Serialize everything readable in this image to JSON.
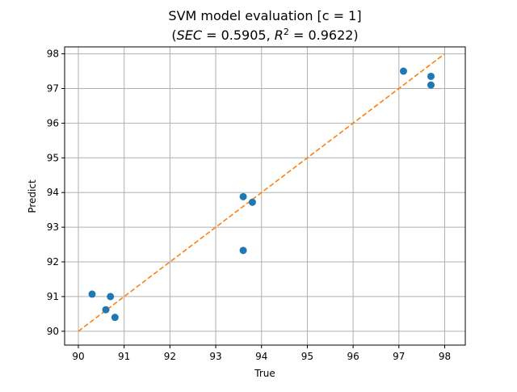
{
  "chart_data": {
    "type": "scatter",
    "title": "SVM model evaluation [c = 1]",
    "subtitle": {
      "open": "(",
      "sec_label": "SEC",
      "sec_eq": " = 0.5905, ",
      "r2_label": "R",
      "r2_exp": "2",
      "r2_eq": " = 0.9622",
      "close": ")"
    },
    "xlabel": "True",
    "ylabel": "Predict",
    "xlim": [
      89.7,
      98.45
    ],
    "ylim": [
      89.6,
      98.2
    ],
    "xticks": [
      90,
      91,
      92,
      93,
      94,
      95,
      96,
      97,
      98
    ],
    "yticks": [
      90,
      91,
      92,
      93,
      94,
      95,
      96,
      97,
      98
    ],
    "grid": true,
    "series": [
      {
        "color": "#1f77b4",
        "x": [
          90.3,
          90.7,
          90.6,
          90.8,
          93.6,
          93.8,
          93.6,
          97.1,
          97.7,
          97.7
        ],
        "y": [
          91.07,
          91.0,
          90.62,
          90.4,
          93.88,
          93.72,
          92.33,
          97.5,
          97.35,
          97.1
        ]
      }
    ],
    "reference_line": {
      "color": "#ff7f0e",
      "style": "dashed",
      "x": [
        90,
        98
      ],
      "y": [
        90,
        98
      ]
    }
  }
}
